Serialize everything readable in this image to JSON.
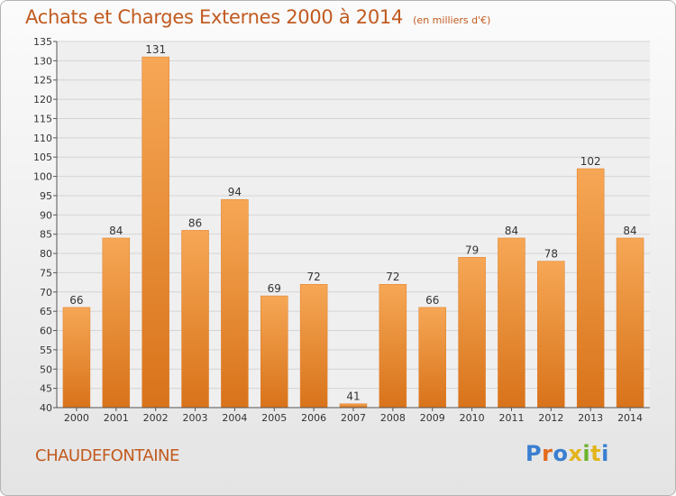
{
  "title": "Achats et Charges Externes 2000 à 2014",
  "subtitle": "(en milliers d'€)",
  "commune": "CHAUDEFONTAINE",
  "logo": {
    "text": "Proxiti",
    "letter_colors": [
      "#3a7fd0",
      "#e36b1c",
      "#3a7fd0",
      "#e3b51c",
      "#6fb22c",
      "#e3b51c",
      "#3a7fd0"
    ]
  },
  "colors": {
    "bar_top": "#f6a755",
    "bar_bottom": "#d8731a",
    "bar_edge": "#e07d2a",
    "text": "#c15a1f"
  },
  "chart_data": {
    "type": "bar",
    "categories": [
      "2000",
      "2001",
      "2002",
      "2003",
      "2004",
      "2005",
      "2006",
      "2007",
      "2008",
      "2009",
      "2010",
      "2011",
      "2012",
      "2013",
      "2014"
    ],
    "values": [
      66,
      84,
      131,
      86,
      94,
      69,
      72,
      41,
      72,
      66,
      79,
      84,
      78,
      102,
      84
    ],
    "title": "Achats et Charges Externes 2000 à 2014",
    "ylim": [
      40,
      135
    ],
    "yticks": [
      40,
      45,
      50,
      55,
      60,
      65,
      70,
      75,
      80,
      85,
      90,
      95,
      100,
      105,
      110,
      115,
      120,
      125,
      130,
      135
    ],
    "grid": true
  }
}
